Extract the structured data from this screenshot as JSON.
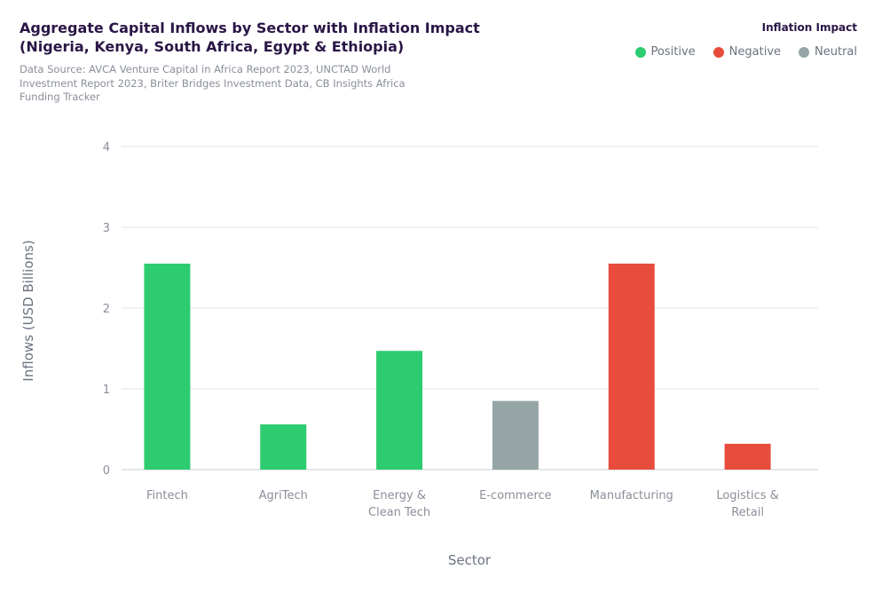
{
  "chart": {
    "title": "Aggregate Capital Inflows by Sector with Inflation Impact",
    "title_line2": "(Nigeria, Kenya, South Africa, Egypt & Ethiopia)",
    "subtitle": "Data Source: AVCA Venture Capital in Africa Report 2023, UNCTAD World Investment Report 2023, Briter Bridges Investment Data, CB Insights Africa Funding Tracker"
  },
  "legend": {
    "title": "Inflation Impact",
    "items": [
      {
        "label": "Positive",
        "color": "#2ecc71"
      },
      {
        "label": "Negative",
        "color": "#e74c3c"
      },
      {
        "label": "Neutral",
        "color": "#95a5a6"
      }
    ]
  },
  "chart_data": {
    "type": "bar",
    "title": "Aggregate Capital Inflows by Sector with Inflation Impact (Nigeria, Kenya, South Africa, Egypt & Ethiopia)",
    "xlabel": "Sector",
    "ylabel": "Inflows (USD Billions)",
    "ylim": [
      0,
      4
    ],
    "yticks": [
      0,
      1,
      2,
      3,
      4
    ],
    "grid": true,
    "legend_position": "top-right",
    "categories": [
      [
        "Fintech"
      ],
      [
        "AgriTech"
      ],
      [
        "Energy &",
        "Clean Tech"
      ],
      [
        "E-commerce"
      ],
      [
        "Manufacturing"
      ],
      [
        "Logistics &",
        "Retail"
      ]
    ],
    "values": [
      2.55,
      0.56,
      1.47,
      0.85,
      2.55,
      0.32
    ],
    "impact": [
      "Positive",
      "Positive",
      "Positive",
      "Neutral",
      "Negative",
      "Negative"
    ],
    "colors": {
      "Positive": "#2ecc71",
      "Negative": "#e74c3c",
      "Neutral": "#95a5a6"
    }
  }
}
